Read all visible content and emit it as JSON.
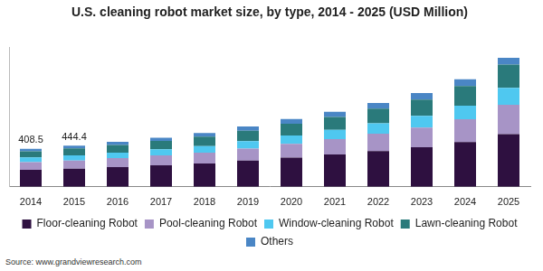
{
  "chart_data": {
    "type": "bar",
    "title": "U.S. cleaning robot market size, by type, 2014 - 2025 (USD Million)",
    "categories": [
      "2014",
      "2015",
      "2016",
      "2017",
      "2018",
      "2019",
      "2020",
      "2021",
      "2022",
      "2023",
      "2024",
      "2025"
    ],
    "series": [
      {
        "name": "Floor-cleaning Robot",
        "color": "#2e1040",
        "values": [
          183.5,
          196,
          213,
          232,
          252,
          282,
          315,
          348,
          386,
          427,
          483,
          567
        ]
      },
      {
        "name": "Pool-cleaning Robot",
        "color": "#a794c6",
        "values": [
          83,
          88,
          96,
          106,
          117,
          131,
          148,
          166,
          187,
          211,
          245,
          317
        ]
      },
      {
        "name": "Window-cleaning Robot",
        "color": "#4fc8f0",
        "values": [
          50,
          55,
          60,
          66,
          71,
          80,
          90,
          100,
          112,
          126,
          147,
          183
        ]
      },
      {
        "name": "Lawn-cleaning Robot",
        "color": "#2a7a7b",
        "values": [
          67,
          75,
          82,
          90,
          100,
          112,
          126,
          140,
          157,
          176,
          211,
          250
        ]
      },
      {
        "name": "Others",
        "color": "#4a86c5",
        "values": [
          25,
          30.4,
          34,
          36,
          40,
          45,
          51,
          56,
          63,
          70,
          74,
          75
        ]
      }
    ],
    "annotations": [
      {
        "x": "2014",
        "value": 408.5
      },
      {
        "x": "2015",
        "value": 444.4
      }
    ],
    "source": "Source: www.grandviewresearch.com",
    "ylim": [
      0,
      1500
    ],
    "stacked": true,
    "grid": false,
    "legend": "bottom",
    "tick_labels": "x"
  }
}
